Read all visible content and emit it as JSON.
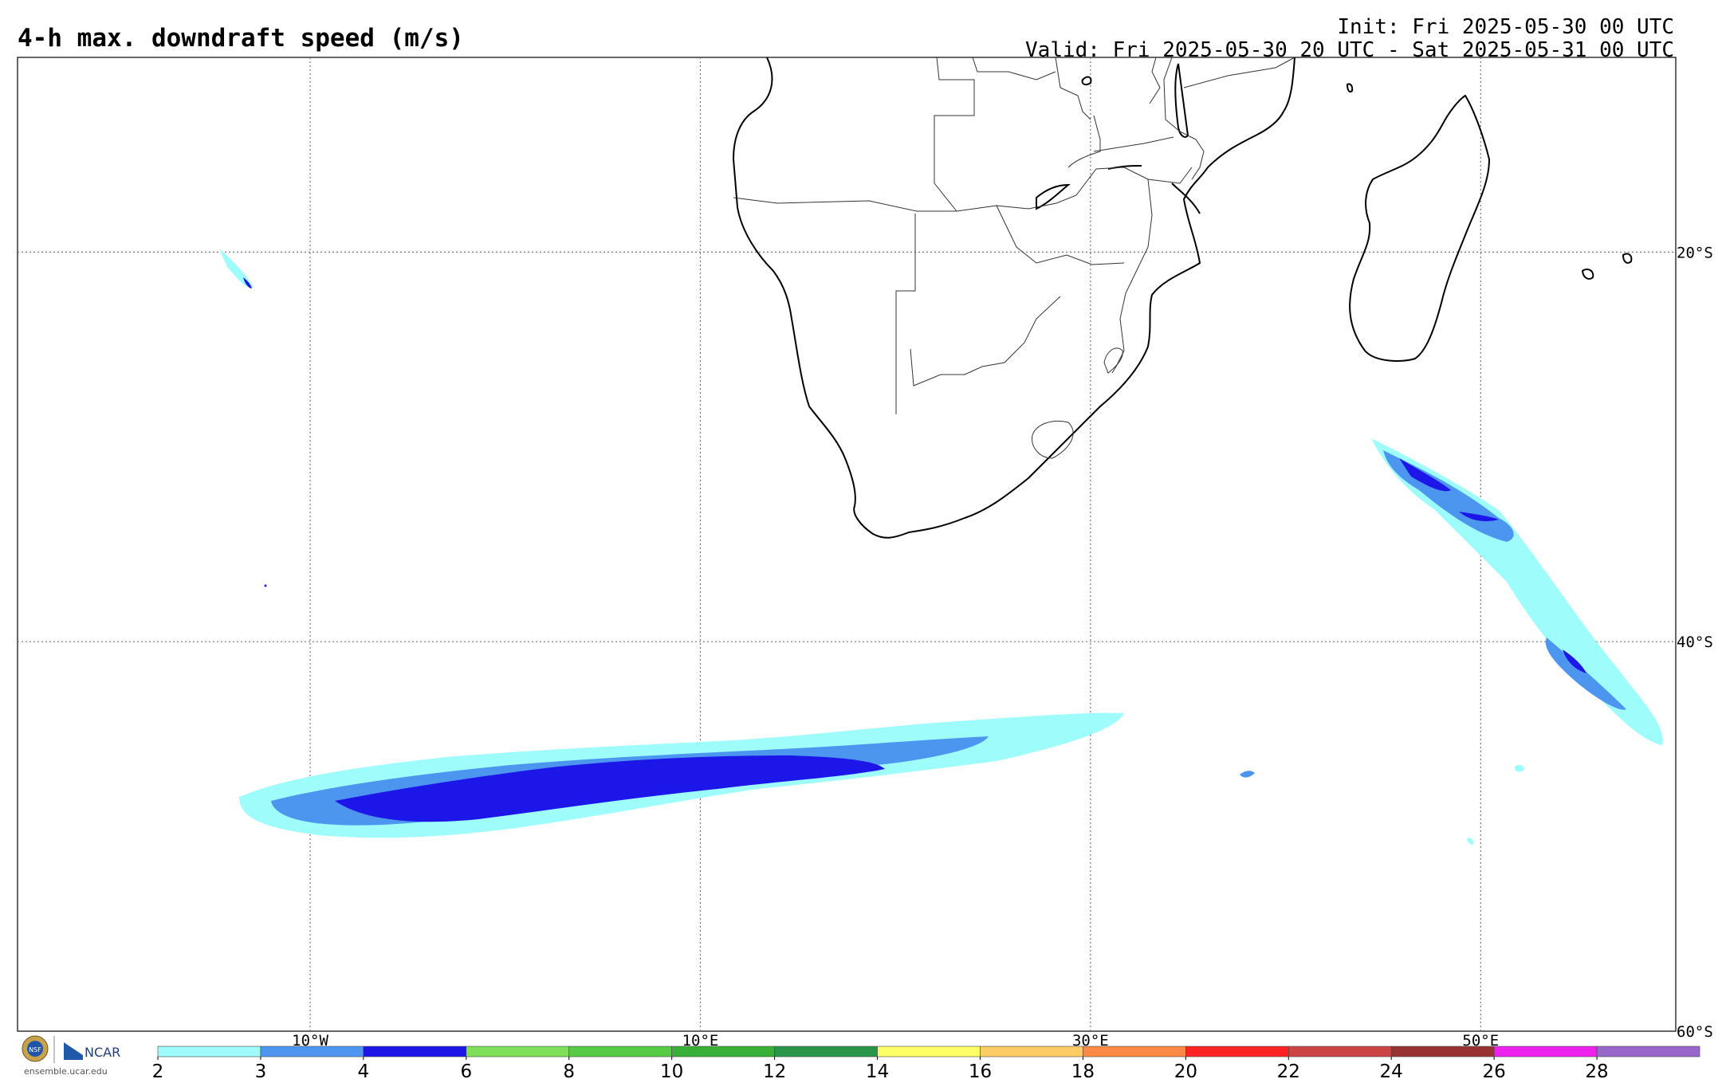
{
  "header": {
    "title": "4-h max. downdraft speed (m/s)",
    "init": "Init: Fri 2025-05-30 00 UTC",
    "valid": "Valid: Fri 2025-05-30 20 UTC - Sat 2025-05-31 00 UTC"
  },
  "map": {
    "lon_range": [
      -25,
      60
    ],
    "lat_range": [
      -60,
      -10
    ],
    "lon_lines": [
      -10,
      10,
      30,
      50
    ],
    "lat_lines": [
      -20,
      -40
    ],
    "lon_labels": [
      {
        "lon": -10,
        "text": "10°W"
      },
      {
        "lon": 10,
        "text": "10°E"
      },
      {
        "lon": 30,
        "text": "30°E"
      },
      {
        "lon": 50,
        "text": "50°E"
      }
    ],
    "lat_labels": [
      {
        "lat": -20,
        "text": "20°S"
      },
      {
        "lat": -40,
        "text": "40°S"
      },
      {
        "lat": -60,
        "text": "60°S"
      }
    ]
  },
  "colorbar": {
    "ticks": [
      "2",
      "3",
      "4",
      "6",
      "8",
      "10",
      "12",
      "14",
      "16",
      "18",
      "20",
      "22",
      "24",
      "26",
      "28"
    ],
    "colors": [
      "#9efcfb",
      "#4d96f0",
      "#1c16e8",
      "#7ee05a",
      "#55cc44",
      "#38b038",
      "#2a9448",
      "#ffff66",
      "#ffcc66",
      "#ff8844",
      "#ff2222",
      "#cc4444",
      "#993333",
      "#ee22ee",
      "#9966cc"
    ]
  },
  "logo": {
    "org1": "NSF",
    "org2": "NCAR",
    "url": "ensemble.ucar.edu"
  }
}
